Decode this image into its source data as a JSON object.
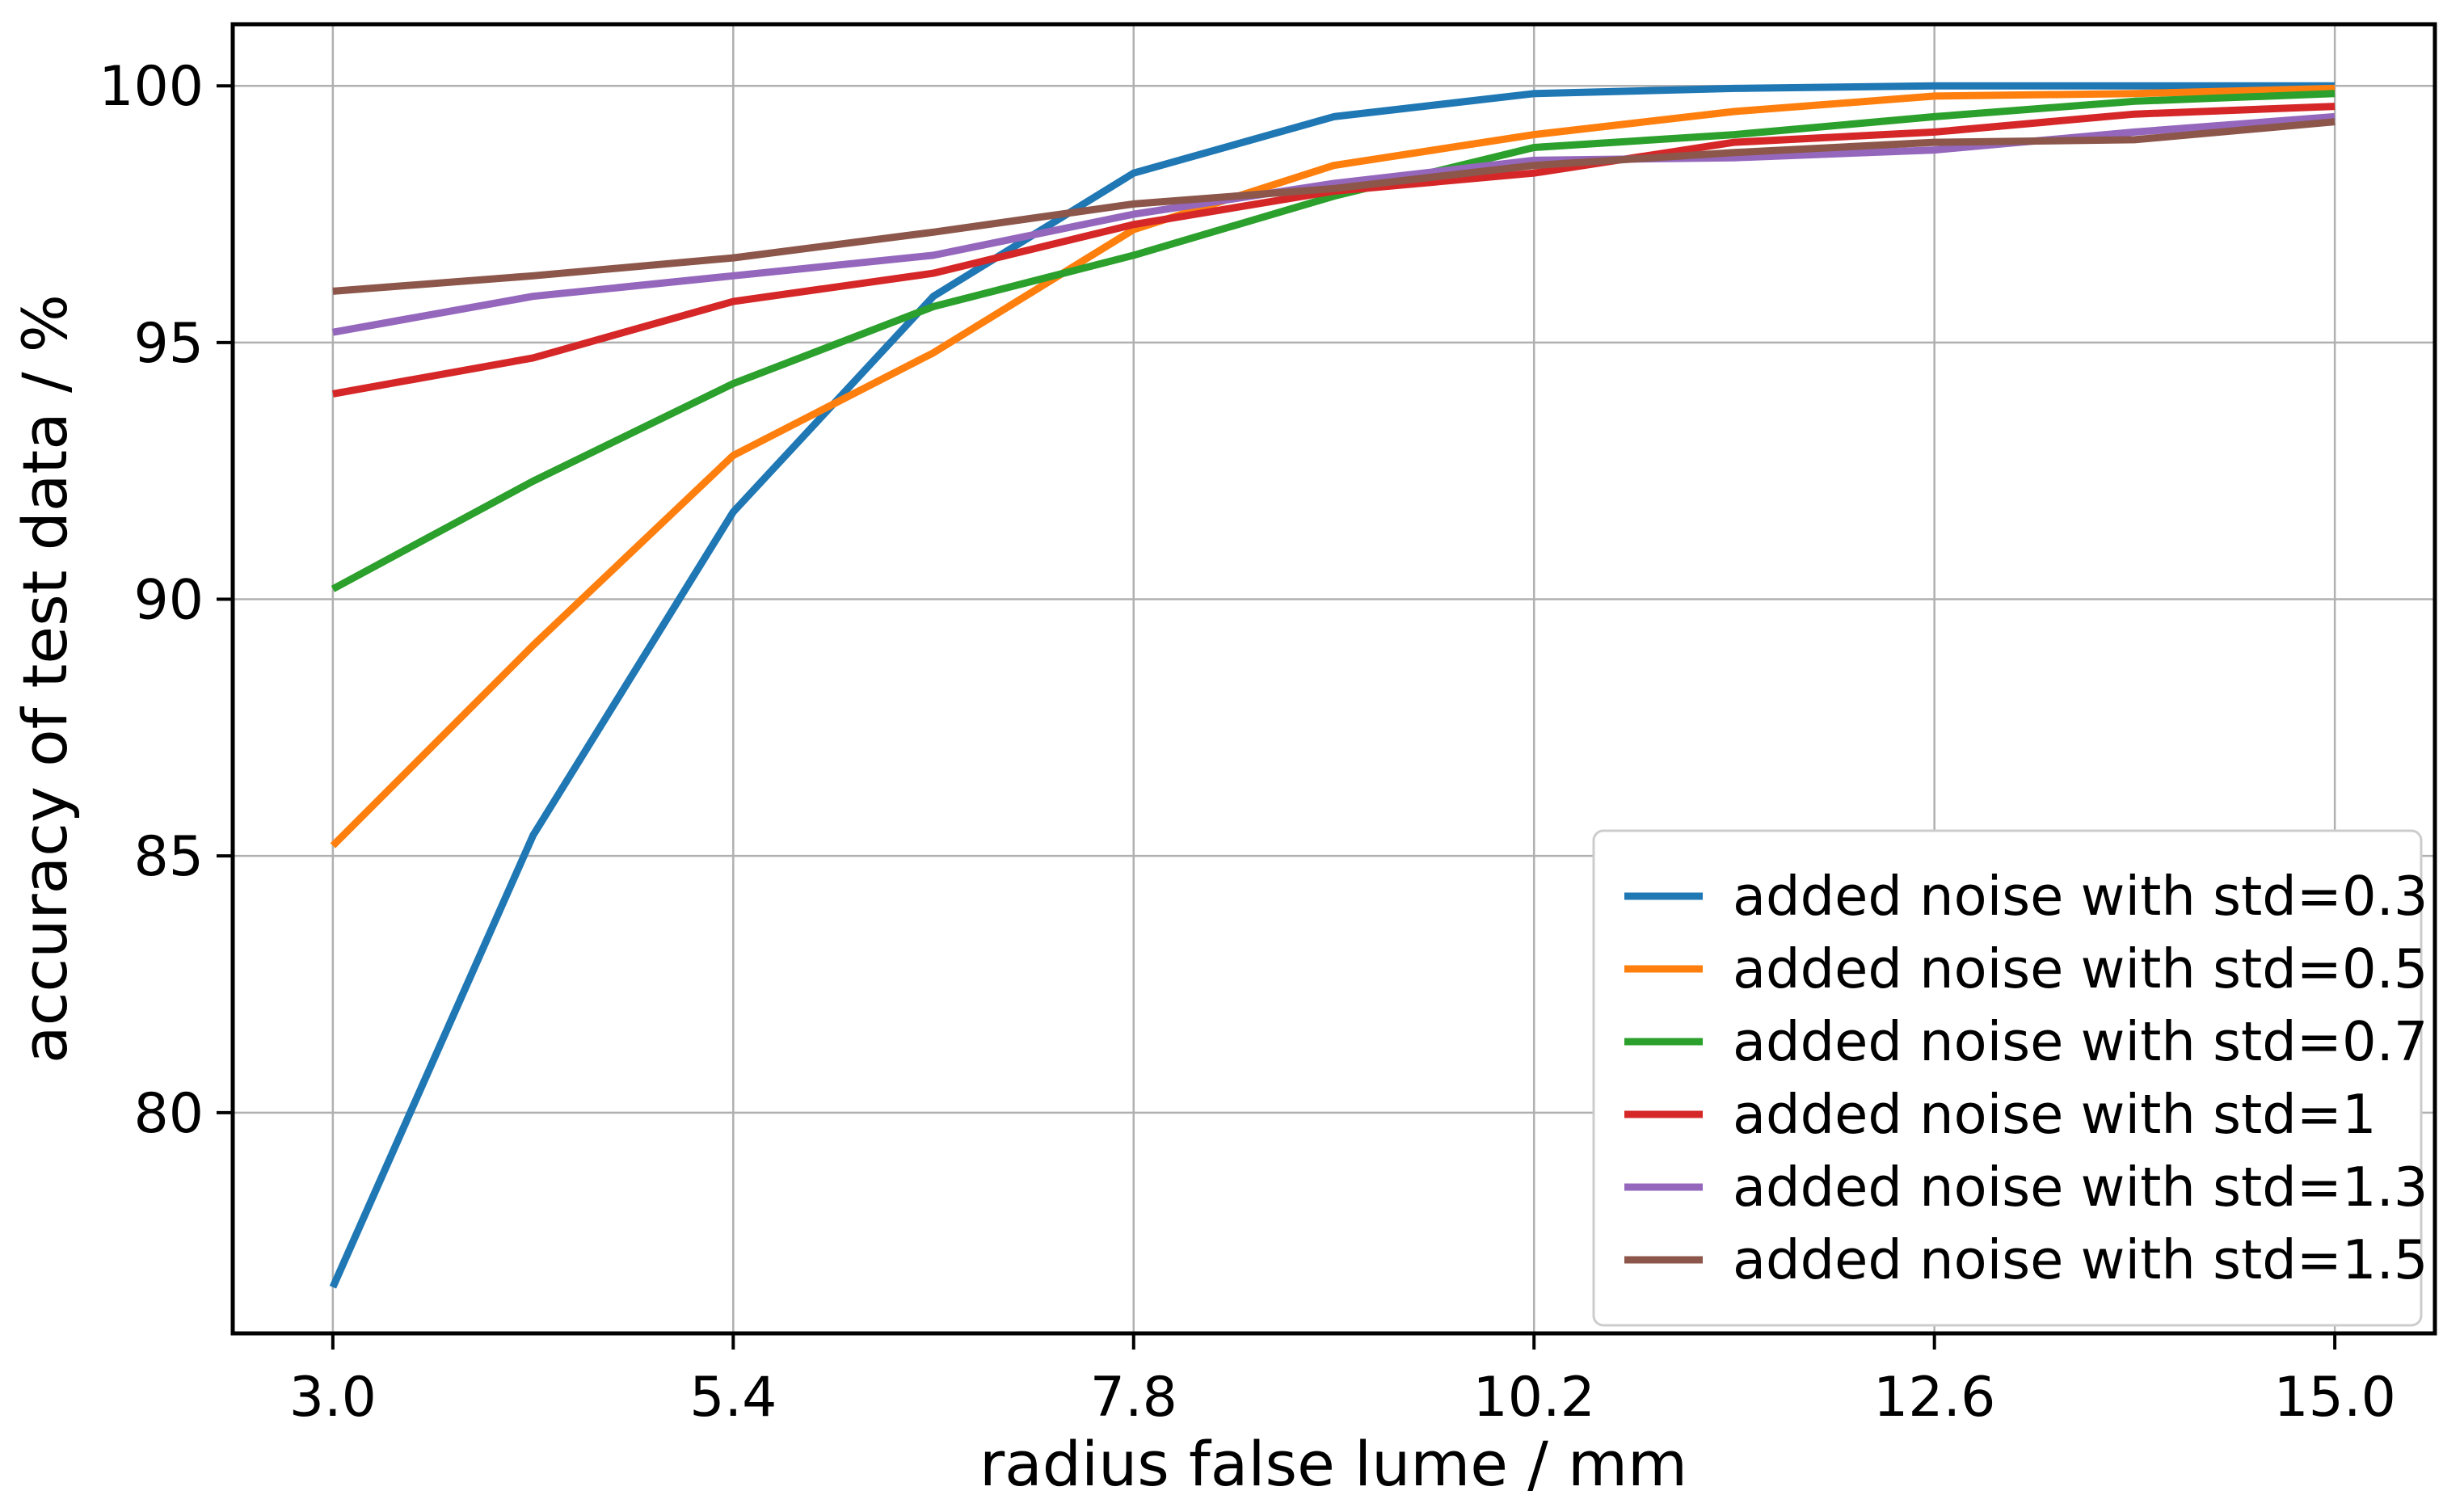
{
  "figure": {
    "background": "#ffffff",
    "spine_color": "#000000",
    "grid_color": "#b0b0b0",
    "legend_border_color": "#cccccc",
    "legend_background": "#ffffff"
  },
  "chart_data": {
    "type": "line",
    "title": "",
    "xlabel": "radius false lume / mm",
    "ylabel": "accuracy of test data / %",
    "x": [
      3.0,
      4.2,
      5.4,
      6.6,
      7.8,
      9.0,
      10.2,
      11.4,
      12.6,
      13.8,
      15.0
    ],
    "x_tick_labels": [
      "3.0",
      "5.4",
      "7.8",
      "10.2",
      "12.6",
      "15.0"
    ],
    "x_tick_values": [
      3.0,
      5.4,
      7.8,
      10.2,
      12.6,
      15.0
    ],
    "y_tick_labels": [
      "80",
      "85",
      "90",
      "95",
      "100"
    ],
    "y_tick_values": [
      80,
      85,
      90,
      95,
      100
    ],
    "xlim": [
      2.4,
      15.6
    ],
    "ylim": [
      75.7,
      101.2
    ],
    "grid": true,
    "legend_position": "lower right",
    "series": [
      {
        "name": "added noise with std=0.3",
        "color": "#1f77b4",
        "values": [
          76.6,
          85.4,
          91.7,
          95.9,
          98.3,
          99.4,
          99.85,
          99.95,
          100.0,
          100.0,
          100.0
        ]
      },
      {
        "name": "added noise with std=0.5",
        "color": "#ff7f0e",
        "values": [
          85.2,
          89.1,
          92.8,
          94.8,
          97.2,
          98.45,
          99.05,
          99.5,
          99.8,
          99.85,
          99.95
        ]
      },
      {
        "name": "added noise with std=0.7",
        "color": "#2ca02c",
        "values": [
          90.2,
          92.3,
          94.2,
          95.7,
          96.7,
          97.85,
          98.8,
          99.05,
          99.4,
          99.7,
          99.85
        ]
      },
      {
        "name": "added noise with std=1",
        "color": "#d62728",
        "values": [
          94.0,
          94.7,
          95.8,
          96.35,
          97.3,
          97.95,
          98.3,
          98.9,
          99.1,
          99.45,
          99.6
        ]
      },
      {
        "name": "added noise with std=1.3",
        "color": "#9467bd",
        "values": [
          95.2,
          95.9,
          96.3,
          96.7,
          97.5,
          98.1,
          98.55,
          98.6,
          98.75,
          99.1,
          99.4
        ]
      },
      {
        "name": "added noise with std=1.5",
        "color": "#8c564b",
        "values": [
          96.0,
          96.3,
          96.65,
          97.15,
          97.7,
          98.0,
          98.45,
          98.7,
          98.9,
          98.95,
          99.3
        ]
      }
    ]
  }
}
